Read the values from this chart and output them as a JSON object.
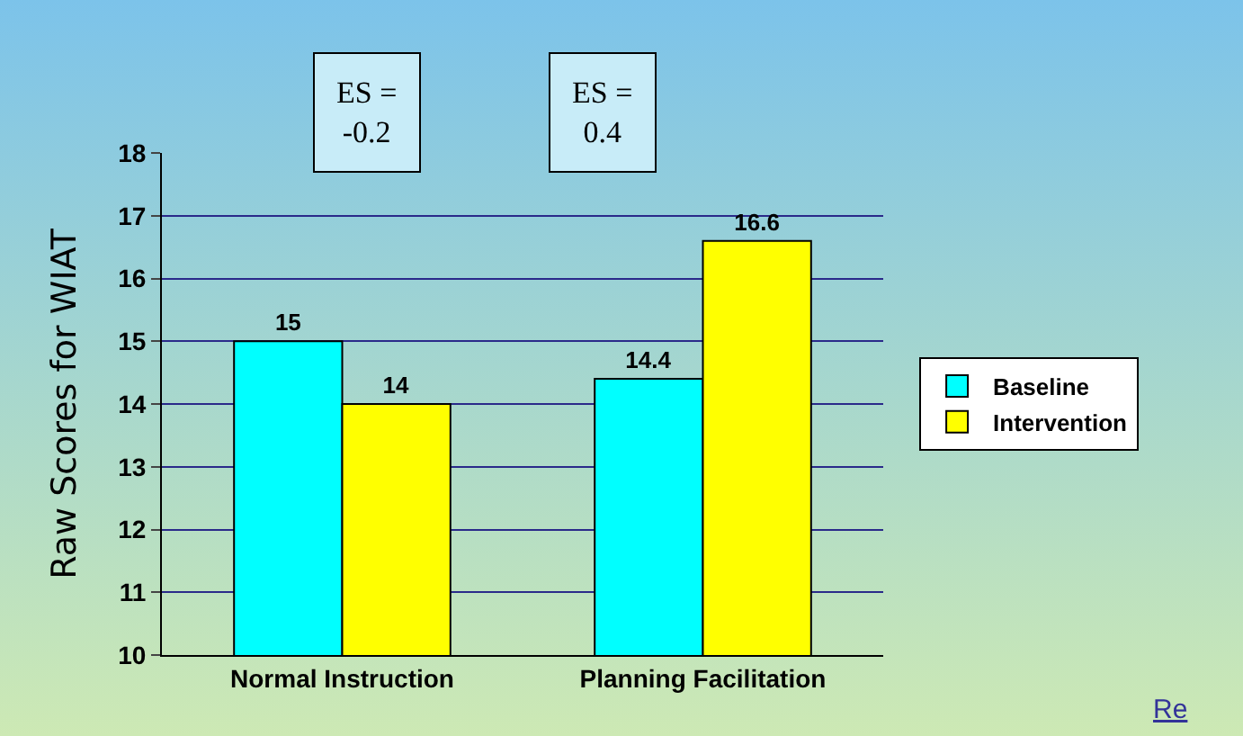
{
  "chart_data": {
    "type": "bar",
    "categories": [
      "Normal Instruction",
      "Planning Facilitation"
    ],
    "series": [
      {
        "name": "Baseline",
        "color": "#00ffff",
        "values": [
          15,
          14.4
        ]
      },
      {
        "name": "Intervention",
        "color": "#ffff00",
        "values": [
          14,
          16.6
        ]
      }
    ],
    "ylabel": "Raw Scores for WIAT",
    "ylim": [
      10,
      18
    ],
    "yticks": [
      10,
      11,
      12,
      13,
      14,
      15,
      16,
      17,
      18
    ],
    "grid": "y",
    "legend": "right",
    "data_labels": true,
    "annotations": [
      "ES =\n-0.2",
      "ES =\n0.4",
      "Re"
    ]
  }
}
